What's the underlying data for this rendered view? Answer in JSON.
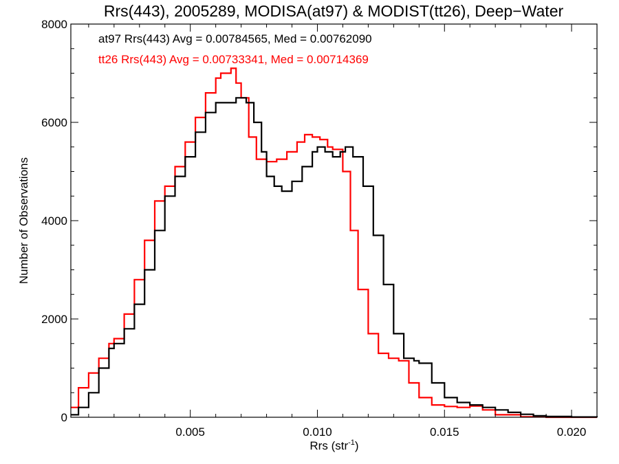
{
  "chart_data": {
    "type": "line",
    "title": "Rrs(443), 2005289, MODISA(at97) & MODIST(tt26), Deep−Water",
    "xlabel": "Rrs (str",
    "xlabel_sup": "-1",
    "xlabel_close": ")",
    "ylabel": "Number of Observations",
    "xlim": [
      0.0003,
      0.021
    ],
    "ylim": [
      0,
      8000
    ],
    "xticks": [
      0.005,
      0.01,
      0.015,
      0.02
    ],
    "xtick_labels": [
      "0.005",
      "0.010",
      "0.015",
      "0.020"
    ],
    "yticks": [
      0,
      2000,
      4000,
      6000,
      8000
    ],
    "ytick_labels": [
      "0",
      "2000",
      "4000",
      "6000",
      "8000"
    ],
    "grid": false,
    "annotations": [
      {
        "text": "at97 Rrs(443) Avg = 0.00784565, Med = 0.00762090",
        "color": "#000000"
      },
      {
        "text": "tt26 Rrs(443) Avg = 0.00733341, Med = 0.00714369",
        "color": "#ff0000"
      }
    ],
    "series": [
      {
        "name": "at97",
        "color": "#000000",
        "x": [
          0.0003,
          0.0006,
          0.001,
          0.0014,
          0.0018,
          0.002,
          0.0024,
          0.0028,
          0.0032,
          0.0036,
          0.004,
          0.0044,
          0.0048,
          0.0052,
          0.0056,
          0.006,
          0.0064,
          0.0068,
          0.007,
          0.0072,
          0.0075,
          0.0078,
          0.008,
          0.0083,
          0.0086,
          0.009,
          0.0094,
          0.0098,
          0.01,
          0.0103,
          0.0106,
          0.0109,
          0.0111,
          0.0114,
          0.0118,
          0.0122,
          0.0126,
          0.013,
          0.0134,
          0.0138,
          0.014,
          0.0145,
          0.015,
          0.0155,
          0.016,
          0.0165,
          0.017,
          0.0175,
          0.018,
          0.0185,
          0.019,
          0.02,
          0.021
        ],
        "y": [
          50,
          200,
          500,
          1000,
          1400,
          1500,
          1800,
          2300,
          3000,
          3800,
          4500,
          4900,
          5300,
          5800,
          6200,
          6400,
          6400,
          6500,
          6500,
          6400,
          6000,
          5400,
          4900,
          4700,
          4600,
          4800,
          5100,
          5400,
          5500,
          5400,
          5300,
          5400,
          5500,
          5300,
          4700,
          3700,
          2700,
          1700,
          1200,
          1150,
          1100,
          700,
          400,
          300,
          250,
          200,
          150,
          100,
          60,
          30,
          15,
          5,
          0
        ]
      },
      {
        "name": "tt26",
        "color": "#ff0000",
        "x": [
          0.0003,
          0.0006,
          0.001,
          0.0014,
          0.0018,
          0.002,
          0.0024,
          0.0028,
          0.0032,
          0.0036,
          0.004,
          0.0044,
          0.0048,
          0.0052,
          0.0056,
          0.006,
          0.0062,
          0.0064,
          0.0066,
          0.0068,
          0.007,
          0.0073,
          0.0076,
          0.008,
          0.0084,
          0.0088,
          0.0092,
          0.0095,
          0.0098,
          0.0101,
          0.0104,
          0.0106,
          0.0108,
          0.011,
          0.0113,
          0.0116,
          0.012,
          0.0124,
          0.0128,
          0.0132,
          0.0136,
          0.014,
          0.0145,
          0.015,
          0.0155,
          0.016,
          0.0165,
          0.017,
          0.018,
          0.019,
          0.021
        ],
        "y": [
          200,
          600,
          900,
          1200,
          1500,
          1600,
          2100,
          2800,
          3600,
          4400,
          4700,
          5100,
          5600,
          6100,
          6600,
          6900,
          7000,
          7000,
          7100,
          6800,
          6500,
          5700,
          5250,
          5200,
          5250,
          5400,
          5600,
          5750,
          5700,
          5650,
          5500,
          5450,
          5450,
          5000,
          3800,
          2600,
          1700,
          1300,
          1200,
          1150,
          700,
          400,
          250,
          220,
          200,
          230,
          150,
          50,
          10,
          0,
          0
        ]
      }
    ]
  }
}
